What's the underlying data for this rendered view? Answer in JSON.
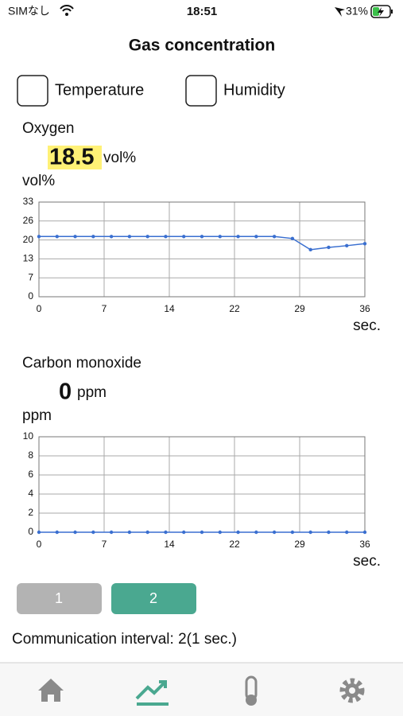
{
  "status_bar": {
    "carrier": "SIMなし",
    "time": "18:51",
    "battery": "31%"
  },
  "header": {
    "title": "Gas concentration"
  },
  "toggles": [
    "Temperature",
    "Humidity"
  ],
  "chart_data": [
    {
      "type": "line",
      "title": "Oxygen",
      "current_value": 18.5,
      "unit": "vol%",
      "y_label": "vol%",
      "x_label": "sec.",
      "color": "#3a6fd0",
      "grid": true,
      "x": [
        0,
        2,
        4,
        6,
        8,
        10,
        12,
        14,
        16,
        18,
        20,
        22,
        24,
        26,
        28,
        30,
        32,
        34,
        36
      ],
      "values": [
        21,
        21,
        21,
        21,
        21,
        21,
        21,
        21,
        21,
        21,
        21,
        21,
        21,
        21,
        20.3,
        16.4,
        17.2,
        17.8,
        18.5
      ],
      "xlim": [
        0,
        36
      ],
      "xticks": [
        0,
        {
          "value": 7.2,
          "label": "7"
        },
        {
          "value": 14.4,
          "label": "14"
        },
        {
          "value": 21.6,
          "label": "22"
        },
        {
          "value": 28.8,
          "label": "29"
        },
        36
      ],
      "ylim": [
        0,
        33
      ],
      "yticks": [
        0,
        {
          "value": 6.6,
          "label": "7"
        },
        {
          "value": 13.2,
          "label": "13"
        },
        {
          "value": 19.8,
          "label": "20"
        },
        {
          "value": 26.4,
          "label": "26"
        },
        33
      ]
    },
    {
      "type": "line",
      "title": "Carbon monoxide",
      "current_value": 0,
      "unit": "ppm",
      "y_label": "ppm",
      "x_label": "sec.",
      "color": "#3a6fd0",
      "grid": true,
      "x": [
        0,
        2,
        4,
        6,
        8,
        10,
        12,
        14,
        16,
        18,
        20,
        22,
        24,
        26,
        28,
        30,
        32,
        34,
        36
      ],
      "values": [
        0,
        0,
        0,
        0,
        0,
        0,
        0,
        0,
        0,
        0,
        0,
        0,
        0,
        0,
        0,
        0,
        0,
        0,
        0
      ],
      "xlim": [
        0,
        36
      ],
      "xticks": [
        0,
        {
          "value": 7.2,
          "label": "7"
        },
        {
          "value": 14.4,
          "label": "14"
        },
        {
          "value": 21.6,
          "label": "22"
        },
        {
          "value": 28.8,
          "label": "29"
        },
        36
      ],
      "ylim": [
        0,
        10
      ],
      "yticks": [
        0,
        2,
        4,
        6,
        8,
        10
      ]
    }
  ],
  "buttons": [
    "1",
    "2"
  ],
  "interval_text": "Communication interval: 2(1 sec.)"
}
